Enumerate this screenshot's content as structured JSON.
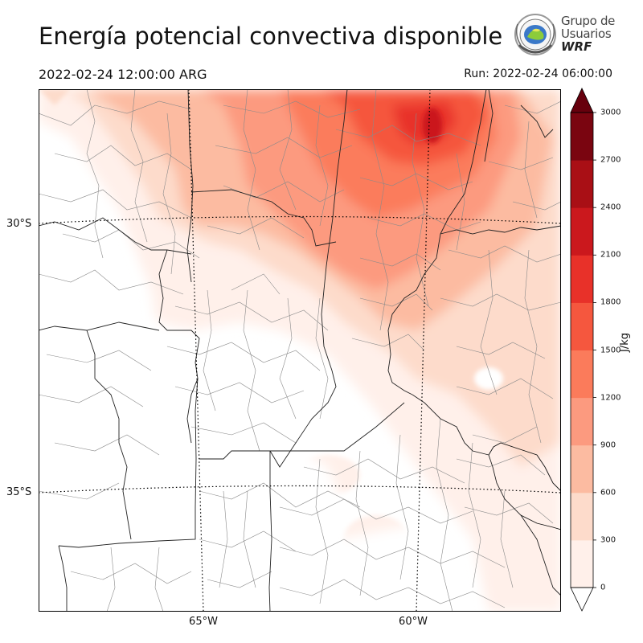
{
  "title": "Energía potencial convectiva disponible",
  "valid_time": "2022-02-24 12:00:00 ARG",
  "run_time": "Run: 2022-02-24 06:00:00",
  "logo": {
    "line1": "Grupo de",
    "line2": "Usuarios",
    "line3": "WRF"
  },
  "map": {
    "lat_labels": [
      "30°S",
      "35°S"
    ],
    "lon_labels": [
      "65°W",
      "60°W"
    ],
    "graticule_style": "dotted"
  },
  "colorbar": {
    "unit": "J/kg",
    "ticks": [
      "0",
      "300",
      "600",
      "900",
      "1200",
      "1500",
      "1800",
      "2100",
      "2400",
      "2700",
      "3000"
    ],
    "colors": [
      "#fff0ea",
      "#fddbcb",
      "#fcbba1",
      "#fc9a7f",
      "#fb7b5b",
      "#f5573e",
      "#e83129",
      "#cb181d",
      "#a90f15",
      "#7a0510"
    ],
    "extend": "both",
    "over_color": "#67000d",
    "under_color": "#ffffff"
  }
}
